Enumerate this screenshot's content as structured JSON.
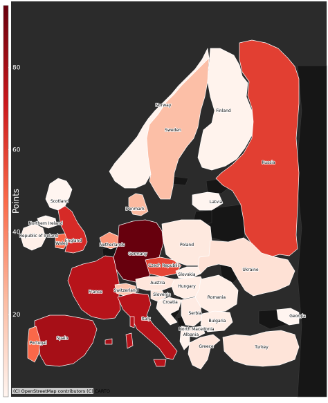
{
  "colorbar": {
    "title": "Points",
    "ticks": [
      20,
      40,
      60,
      80
    ],
    "range": [
      0,
      95
    ],
    "colors": [
      "#fff5f0",
      "#fcbba1",
      "#fb6a4a",
      "#cb181d",
      "#67000d"
    ]
  },
  "attribution": "(C) OpenStreetMap contributors (C) CARTO",
  "colors": {
    "background": "#2b2b2b",
    "land_no_data": "#161616",
    "border": "#ffffff"
  },
  "countries": [
    {
      "key": "norway",
      "name": "Norway",
      "points": 1
    },
    {
      "key": "sweden",
      "name": "Sweden",
      "points": 22
    },
    {
      "key": "finland",
      "name": "Finland",
      "points": 1
    },
    {
      "key": "russia",
      "name": "Russia",
      "points": 60
    },
    {
      "key": "latvia",
      "name": "Latvia",
      "points": 0
    },
    {
      "key": "denmark",
      "name": "Denmark",
      "points": 24
    },
    {
      "key": "scotland",
      "name": "Scotland",
      "points": 0
    },
    {
      "key": "northern-ireland",
      "name": "Northern Ireland",
      "points": 0
    },
    {
      "key": "republic-of-ireland",
      "name": "Republic of Ireland",
      "points": 2
    },
    {
      "key": "wales",
      "name": "Wales",
      "points": 48
    },
    {
      "key": "england",
      "name": "England",
      "points": 66
    },
    {
      "key": "netherlands",
      "name": "Netherlands",
      "points": 35
    },
    {
      "key": "germany",
      "name": "Germany",
      "points": 95
    },
    {
      "key": "poland",
      "name": "Poland",
      "points": 5
    },
    {
      "key": "czech-republic",
      "name": "Czech Republic",
      "points": 58
    },
    {
      "key": "slovakia",
      "name": "Slovakia",
      "points": 2
    },
    {
      "key": "ukraine",
      "name": "Ukraine",
      "points": 8
    },
    {
      "key": "france",
      "name": "France",
      "points": 76
    },
    {
      "key": "switzerland",
      "name": "Switzerland",
      "points": 20
    },
    {
      "key": "austria",
      "name": "Austria",
      "points": 6
    },
    {
      "key": "hungary",
      "name": "Hungary",
      "points": 3
    },
    {
      "key": "slovenia",
      "name": "Slovenia",
      "points": 6
    },
    {
      "key": "croatia",
      "name": "Croatia",
      "points": 2
    },
    {
      "key": "romania",
      "name": "Romania",
      "points": 3
    },
    {
      "key": "serbia",
      "name": "Serbia",
      "points": 4
    },
    {
      "key": "bulgaria",
      "name": "Bulgaria",
      "points": 3
    },
    {
      "key": "north-macedonia",
      "name": "North Macedonia",
      "points": 2
    },
    {
      "key": "albania",
      "name": "Albania",
      "points": 1
    },
    {
      "key": "greece",
      "name": "Greece",
      "points": 6
    },
    {
      "key": "italy",
      "name": "Italy",
      "points": 76
    },
    {
      "key": "spain",
      "name": "Spain",
      "points": 80
    },
    {
      "key": "portugal",
      "name": "Portugal",
      "points": 48
    },
    {
      "key": "turkey",
      "name": "Turkey",
      "points": 7
    },
    {
      "key": "georgia",
      "name": "Georgia",
      "points": 0
    }
  ]
}
